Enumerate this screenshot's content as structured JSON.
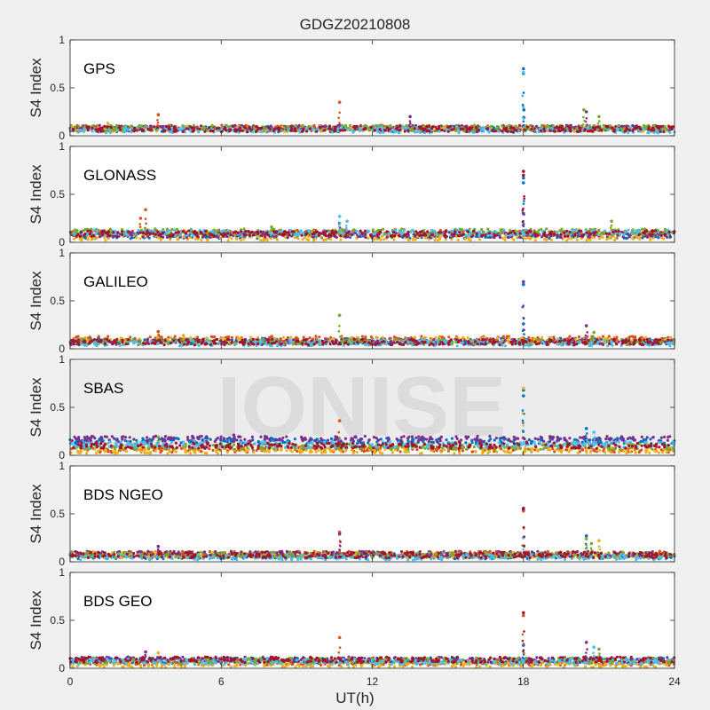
{
  "chart_data": {
    "type": "scatter",
    "title": "GDGZ20210808",
    "xlabel": "UT(h)",
    "ylabel": "S4 Index",
    "xlim": [
      0,
      24
    ],
    "ylim": [
      0,
      1
    ],
    "xticks": [
      0,
      6,
      12,
      18,
      24
    ],
    "yticks": [
      0,
      0.5,
      1
    ],
    "watermark": "IONISE",
    "panels": [
      {
        "name": "GPS",
        "series": [
          {
            "color": "#0072BD",
            "baseline": 0.07,
            "x": [
              18.0,
              18.0,
              18.02
            ],
            "y": [
              0.7,
              0.65,
              0.27
            ]
          },
          {
            "color": "#D95319",
            "baseline": 0.08,
            "x": [
              10.7,
              3.5
            ],
            "y": [
              0.35,
              0.22
            ]
          },
          {
            "color": "#EDB120",
            "baseline": 0.07,
            "x": [
              1.5
            ],
            "y": [
              0.13
            ]
          },
          {
            "color": "#7E2F8E",
            "baseline": 0.08,
            "x": [
              13.5,
              20.5
            ],
            "y": [
              0.2,
              0.25
            ]
          },
          {
            "color": "#77AC30",
            "baseline": 0.08,
            "x": [
              20.4,
              21.0
            ],
            "y": [
              0.27,
              0.2
            ]
          },
          {
            "color": "#4DBEEE",
            "baseline": 0.06,
            "x": [
              18.0
            ],
            "y": [
              0.66
            ]
          },
          {
            "color": "#A2142F",
            "baseline": 0.07,
            "x": [
              22.5
            ],
            "y": [
              0.1
            ]
          }
        ]
      },
      {
        "name": "GLONASS",
        "series": [
          {
            "color": "#0072BD",
            "baseline": 0.07,
            "x": [
              18.0,
              18.0
            ],
            "y": [
              0.67,
              0.62
            ]
          },
          {
            "color": "#D95319",
            "baseline": 0.1,
            "x": [
              3.0,
              2.8
            ],
            "y": [
              0.34,
              0.25
            ]
          },
          {
            "color": "#EDB120",
            "baseline": 0.05,
            "x": [
              4.0
            ],
            "y": [
              0.12
            ]
          },
          {
            "color": "#7E2F8E",
            "baseline": 0.08,
            "x": [
              18.0,
              10.7
            ],
            "y": [
              0.3,
              0.2
            ]
          },
          {
            "color": "#77AC30",
            "baseline": 0.11,
            "x": [
              8.0,
              21.5
            ],
            "y": [
              0.16,
              0.22
            ]
          },
          {
            "color": "#4DBEEE",
            "baseline": 0.1,
            "x": [
              10.7,
              11.0
            ],
            "y": [
              0.27,
              0.22
            ]
          },
          {
            "color": "#A2142F",
            "baseline": 0.09,
            "x": [
              18.0,
              18.0
            ],
            "y": [
              0.74,
              0.7
            ]
          }
        ]
      },
      {
        "name": "GALILEO",
        "series": [
          {
            "color": "#0072BD",
            "baseline": 0.08,
            "x": [
              18.0,
              18.0
            ],
            "y": [
              0.67,
              0.26
            ]
          },
          {
            "color": "#D95319",
            "baseline": 0.1,
            "x": [
              8.0,
              3.5
            ],
            "y": [
              0.13,
              0.18
            ]
          },
          {
            "color": "#EDB120",
            "baseline": 0.09,
            "x": [
              4.5
            ],
            "y": [
              0.14
            ]
          },
          {
            "color": "#7E2F8E",
            "baseline": 0.07,
            "x": [
              20.5,
              18.0
            ],
            "y": [
              0.24,
              0.7
            ]
          },
          {
            "color": "#77AC30",
            "baseline": 0.07,
            "x": [
              10.7,
              20.8
            ],
            "y": [
              0.35,
              0.17
            ]
          },
          {
            "color": "#4DBEEE",
            "baseline": 0.06,
            "x": [
              12.0
            ],
            "y": [
              0.09
            ]
          },
          {
            "color": "#A2142F",
            "baseline": 0.07,
            "x": [
              22.0
            ],
            "y": [
              0.08
            ]
          }
        ]
      },
      {
        "name": "SBAS",
        "series": [
          {
            "color": "#0072BD",
            "baseline": 0.15,
            "x": [
              18.0,
              18.0,
              20.5
            ],
            "y": [
              0.68,
              0.62,
              0.28
            ]
          },
          {
            "color": "#D95319",
            "baseline": 0.06,
            "x": [
              10.7
            ],
            "y": [
              0.36
            ]
          },
          {
            "color": "#EDB120",
            "baseline": 0.05,
            "x": [
              18.0
            ],
            "y": [
              0.7
            ]
          },
          {
            "color": "#7E2F8E",
            "baseline": 0.17,
            "x": [
              6.5,
              7.8
            ],
            "y": [
              0.21,
              0.19
            ]
          },
          {
            "color": "#77AC30",
            "baseline": 0.09,
            "x": [
              3.5
            ],
            "y": [
              0.19
            ]
          },
          {
            "color": "#4DBEEE",
            "baseline": 0.11,
            "x": [
              20.8
            ],
            "y": [
              0.24
            ]
          },
          {
            "color": "#A2142F",
            "baseline": 0.1,
            "x": [],
            "y": []
          }
        ]
      },
      {
        "name": "BDS NGEO",
        "series": [
          {
            "color": "#0072BD",
            "baseline": 0.06,
            "x": [
              20.5,
              18.0
            ],
            "y": [
              0.27,
              0.56
            ]
          },
          {
            "color": "#D95319",
            "baseline": 0.08,
            "x": [
              10.7,
              18.0
            ],
            "y": [
              0.31,
              0.53
            ]
          },
          {
            "color": "#EDB120",
            "baseline": 0.07,
            "x": [
              21.0
            ],
            "y": [
              0.22
            ]
          },
          {
            "color": "#7E2F8E",
            "baseline": 0.08,
            "x": [
              3.5,
              10.7
            ],
            "y": [
              0.16,
              0.29
            ]
          },
          {
            "color": "#77AC30",
            "baseline": 0.07,
            "x": [
              20.5,
              20.7
            ],
            "y": [
              0.24,
              0.19
            ]
          },
          {
            "color": "#4DBEEE",
            "baseline": 0.05,
            "x": [
              18.0
            ],
            "y": [
              0.25
            ]
          },
          {
            "color": "#A2142F",
            "baseline": 0.07,
            "x": [
              18.0
            ],
            "y": [
              0.55
            ]
          }
        ]
      },
      {
        "name": "BDS GEO",
        "series": [
          {
            "color": "#0072BD",
            "baseline": 0.08,
            "x": [
              18.0
            ],
            "y": [
              0.24
            ]
          },
          {
            "color": "#D95319",
            "baseline": 0.06,
            "x": [
              10.7,
              18.0
            ],
            "y": [
              0.32,
              0.55
            ]
          },
          {
            "color": "#EDB120",
            "baseline": 0.04,
            "x": [
              3.5
            ],
            "y": [
              0.16
            ]
          },
          {
            "color": "#7E2F8E",
            "baseline": 0.09,
            "x": [
              20.5,
              3.0
            ],
            "y": [
              0.27,
              0.17
            ]
          },
          {
            "color": "#77AC30",
            "baseline": 0.08,
            "x": [
              21.0
            ],
            "y": [
              0.2
            ]
          },
          {
            "color": "#4DBEEE",
            "baseline": 0.07,
            "x": [
              20.8
            ],
            "y": [
              0.22
            ]
          },
          {
            "color": "#A2142F",
            "baseline": 0.09,
            "x": [
              18.0
            ],
            "y": [
              0.58
            ]
          }
        ]
      }
    ]
  }
}
